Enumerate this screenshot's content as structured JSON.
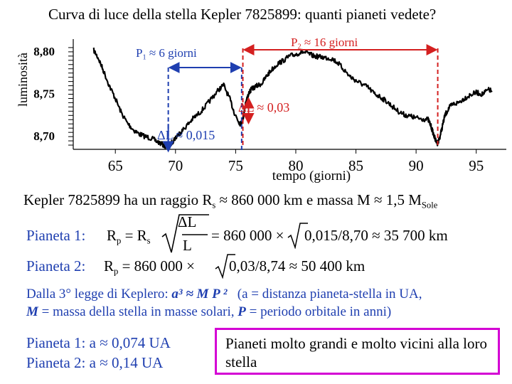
{
  "slide": {
    "title": "Curva di luce della stella Kepler 7825899: quanti pianeti vedete?",
    "star_info": "Kepler 7825899 ha un raggio R",
    "star_info_s": "s",
    "star_info_mid": " ≈ 860 000 km e massa M ≈ 1,5 M",
    "star_info_sole": "Sole",
    "p1_prefix": "Pianeta 1:  ",
    "p1_R": "R",
    "p1_p": "p",
    "p1_eq": " = R",
    "p1_s": "s",
    "p1_frac_num": "ΔL",
    "p1_frac_den": "L",
    "p1_rest": "= 860 000 ×",
    "p1_rest2": "0,015/8,70 ≈ 35 700 km",
    "p2_prefix": "Pianeta 2:  ",
    "p2_R": "R",
    "p2_p": "p",
    "p2_rest": " = 860 000 ×",
    "p2_rest2": "0,03/8,74 ≈ 50 400 km",
    "kepler_line1a": "Dalla 3° legge di Keplero: ",
    "kepler_formula": "a³ ≈ M P ²",
    "kepler_line1b": "(a = distanza pianeta-stella in UA,",
    "kepler_line2a": "M",
    "kepler_line2b": " = massa della stella in masse solari, ",
    "kepler_line2c": "P",
    "kepler_line2d": " = periodo orbitale in anni)",
    "a1": "Pianeta 1: a ≈ 0,074 UA",
    "a2": "Pianeta 2: a ≈ 0,14 UA",
    "conclusion": "Pianeti molto grandi e molto vicini alla loro stella"
  },
  "annotations": {
    "p1_label": "P",
    "p1_sub": "1",
    "p1_text": " ≈ 6 giorni",
    "p2_label": "P",
    "p2_sub": "2",
    "p2_text": " ≈ 16 giorni",
    "dl1": "ΔL ≈ 0,015",
    "dl2": "ΔL ≈ 0,03"
  },
  "colors": {
    "blue": "#1f3fb0",
    "red": "#d42020",
    "magenta": "#d400d4"
  },
  "chart_data": {
    "type": "line",
    "ylabel": "luminosità",
    "xlabel": "tempo (giorni)",
    "x_ticks": [
      "65",
      "70",
      "75",
      "80",
      "85",
      "90",
      "95"
    ],
    "y_ticks": [
      "8,80",
      "8,75",
      "8,70"
    ],
    "xlim": [
      61.5,
      97.5
    ],
    "ylim": [
      8.685,
      8.815
    ],
    "series": [
      {
        "x": [
          63.2,
          63.6,
          64.0,
          64.5,
          65.0,
          65.5,
          66.0,
          66.5,
          67.0,
          67.5,
          68.0,
          68.5,
          69.0,
          69.3,
          69.6,
          69.9,
          70.2,
          70.5,
          71.0,
          71.5,
          72.0,
          72.5,
          73.0,
          73.5,
          74.0,
          74.5,
          74.9,
          75.2,
          75.4,
          75.6,
          75.8,
          76.1,
          76.4,
          76.8,
          77.2,
          77.6,
          78.0,
          78.5,
          79.0,
          79.5,
          80.0,
          80.5,
          81.0,
          81.5,
          82.0,
          82.5,
          83.0,
          83.5,
          84.0,
          84.5,
          85.0,
          85.5,
          86.0,
          86.5,
          87.0,
          87.5,
          88.0,
          88.5,
          89.0,
          89.5,
          90.0,
          90.5,
          91.0,
          91.2,
          91.4,
          91.6,
          91.8,
          92.0,
          92.2,
          92.4,
          92.7,
          93.0,
          93.5,
          94.0,
          94.5,
          95.0,
          95.5,
          96.0,
          96.3
        ],
        "y": [
          8.802,
          8.792,
          8.778,
          8.76,
          8.745,
          8.728,
          8.716,
          8.708,
          8.703,
          8.7,
          8.698,
          8.694,
          8.69,
          8.688,
          8.691,
          8.697,
          8.702,
          8.706,
          8.714,
          8.722,
          8.728,
          8.736,
          8.745,
          8.754,
          8.761,
          8.745,
          8.728,
          8.719,
          8.715,
          8.72,
          8.738,
          8.752,
          8.757,
          8.76,
          8.763,
          8.772,
          8.779,
          8.786,
          8.79,
          8.795,
          8.797,
          8.8,
          8.798,
          8.795,
          8.794,
          8.793,
          8.792,
          8.787,
          8.779,
          8.771,
          8.766,
          8.762,
          8.758,
          8.751,
          8.747,
          8.742,
          8.736,
          8.73,
          8.726,
          8.724,
          8.722,
          8.721,
          8.72,
          8.714,
          8.705,
          8.696,
          8.692,
          8.701,
          8.713,
          8.725,
          8.733,
          8.738,
          8.74,
          8.745,
          8.749,
          8.752,
          8.75,
          8.755,
          8.754
        ]
      }
    ]
  }
}
